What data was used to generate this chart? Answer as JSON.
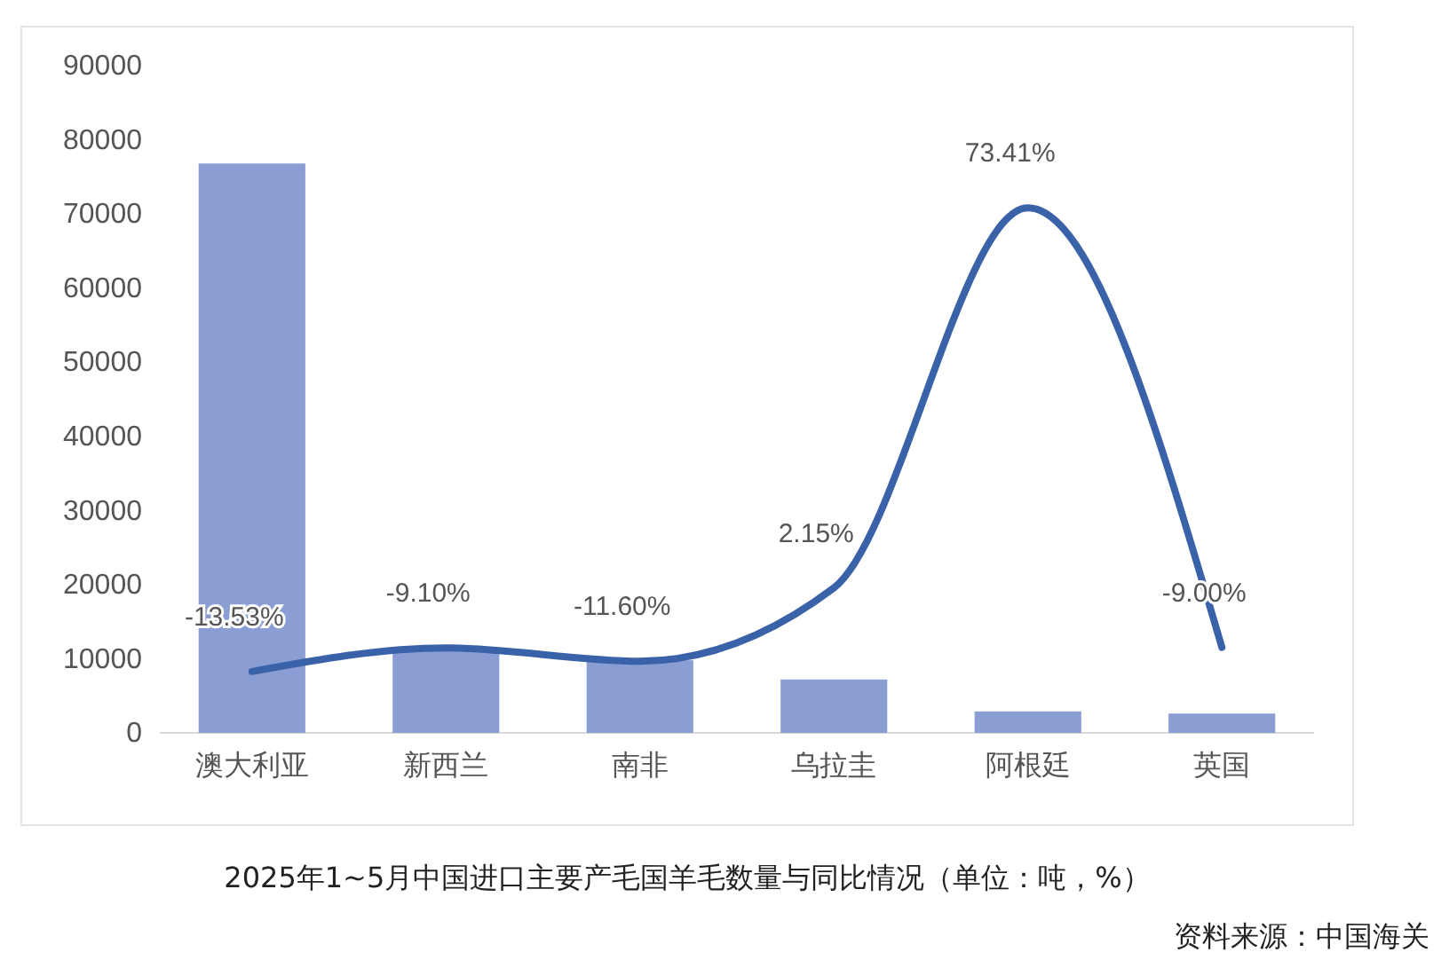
{
  "chart_data": {
    "type": "bar",
    "title": "2025年1~5月中国进口主要产毛国羊毛数量与同比情况（单位：吨，%）",
    "annotations": [
      "资料来源：中国海关"
    ],
    "categories": [
      "澳大利亚",
      "新西兰",
      "南非",
      "乌拉圭",
      "阿根廷",
      "英国"
    ],
    "series": [
      {
        "color": "#8a9ed4",
        "values": [
          76800,
          11500,
          9800,
          7200,
          2900,
          2600
        ]
      },
      {
        "type": "line",
        "axis": "y2",
        "color": "#3a62a8",
        "values": [
          -13.53,
          -9.1,
          -11.6,
          2.15,
          73.41,
          -9.0
        ],
        "value_labels": [
          "-13.53%",
          "-9.10%",
          "-11.60%",
          "2.15%",
          "73.41%",
          "-9.00%"
        ]
      }
    ],
    "ylim": [
      0,
      90000
    ],
    "yticks": [
      0,
      10000,
      20000,
      30000,
      40000,
      50000,
      60000,
      70000,
      80000,
      90000
    ],
    "grid": false,
    "marker": "none",
    "line_style": "solid"
  }
}
